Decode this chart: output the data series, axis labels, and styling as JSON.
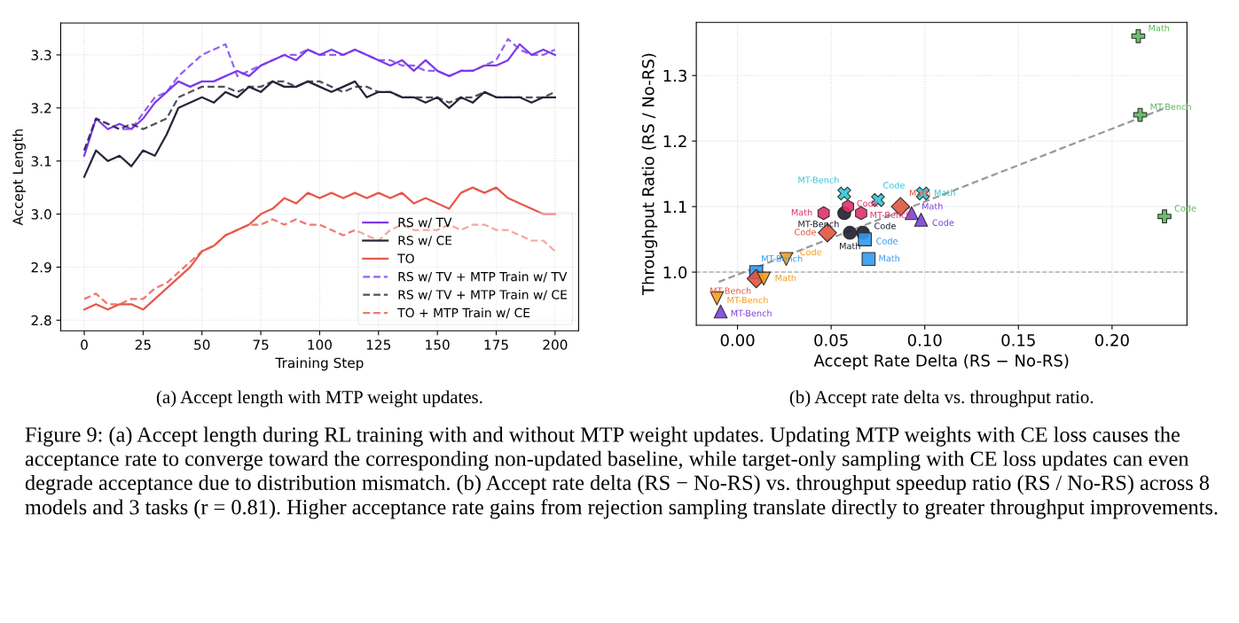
{
  "chart_data": [
    {
      "type": "line",
      "xlabel": "Training Step",
      "ylabel": "Accept Length",
      "grid": true,
      "legend": "bottom right",
      "line_style": "solid",
      "marker": "none",
      "xlim": [
        -10,
        210
      ],
      "ylim": [
        2.78,
        3.36
      ],
      "xticks": [
        0,
        25,
        50,
        75,
        100,
        125,
        150,
        175,
        200
      ],
      "yticks": [
        2.8,
        2.9,
        {
          "value": 3.0,
          "label": "3.0"
        },
        3.1,
        3.2,
        3.3
      ],
      "x": [
        0,
        5,
        10,
        15,
        20,
        25,
        30,
        35,
        40,
        45,
        50,
        55,
        60,
        65,
        70,
        75,
        80,
        85,
        90,
        95,
        100,
        105,
        110,
        115,
        120,
        125,
        130,
        135,
        140,
        145,
        150,
        155,
        160,
        165,
        170,
        175,
        180,
        185,
        190,
        195,
        200
      ],
      "series": [
        {
          "name": "RS w/ TV",
          "color": "#7c3aed",
          "values": [
            3.11,
            3.18,
            3.16,
            3.17,
            3.16,
            3.18,
            3.21,
            3.23,
            3.25,
            3.24,
            3.25,
            3.25,
            3.26,
            3.27,
            3.26,
            3.28,
            3.29,
            3.3,
            3.29,
            3.31,
            3.3,
            3.31,
            3.3,
            3.31,
            3.3,
            3.29,
            3.28,
            3.29,
            3.27,
            3.29,
            3.27,
            3.26,
            3.27,
            3.27,
            3.28,
            3.28,
            3.29,
            3.32,
            3.3,
            3.31,
            3.3
          ]
        },
        {
          "name": "RS w/ CE",
          "color": "#25253a",
          "values": [
            3.07,
            3.12,
            3.1,
            3.11,
            3.09,
            3.12,
            3.11,
            3.15,
            3.2,
            3.21,
            3.22,
            3.21,
            3.23,
            3.22,
            3.24,
            3.23,
            3.25,
            3.24,
            3.24,
            3.25,
            3.24,
            3.23,
            3.24,
            3.25,
            3.22,
            3.23,
            3.23,
            3.22,
            3.22,
            3.21,
            3.22,
            3.2,
            3.22,
            3.21,
            3.23,
            3.22,
            3.22,
            3.22,
            3.21,
            3.22,
            3.22
          ]
        },
        {
          "name": "TO",
          "color": "#e8574a",
          "values": [
            2.82,
            2.83,
            2.82,
            2.83,
            2.83,
            2.82,
            2.84,
            2.86,
            2.88,
            2.9,
            2.93,
            2.94,
            2.96,
            2.97,
            2.98,
            3.0,
            3.01,
            3.03,
            3.02,
            3.04,
            3.03,
            3.04,
            3.03,
            3.04,
            3.03,
            3.04,
            3.03,
            3.04,
            3.02,
            3.03,
            3.02,
            3.01,
            3.04,
            3.05,
            3.04,
            3.05,
            3.03,
            3.02,
            3.01,
            3.0,
            3.0
          ]
        },
        {
          "name": "RS w/ TV + MTP Train w/ TV",
          "color": "#7c3aed",
          "line_style": "dashed",
          "values": [
            3.12,
            3.18,
            3.17,
            3.16,
            3.16,
            3.19,
            3.22,
            3.23,
            3.26,
            3.28,
            3.3,
            3.31,
            3.32,
            3.26,
            3.27,
            3.28,
            3.29,
            3.3,
            3.3,
            3.31,
            3.3,
            3.3,
            3.3,
            3.31,
            3.3,
            3.29,
            3.29,
            3.28,
            3.28,
            3.27,
            3.27,
            3.26,
            3.27,
            3.27,
            3.28,
            3.29,
            3.33,
            3.31,
            3.3,
            3.3,
            3.31
          ]
        },
        {
          "name": "RS w/ TV + MTP Train w/ CE",
          "color": "#25253a",
          "line_style": "dashed",
          "values": [
            3.12,
            3.18,
            3.17,
            3.16,
            3.17,
            3.16,
            3.17,
            3.18,
            3.22,
            3.23,
            3.24,
            3.24,
            3.24,
            3.23,
            3.24,
            3.24,
            3.25,
            3.25,
            3.24,
            3.25,
            3.25,
            3.24,
            3.23,
            3.24,
            3.24,
            3.23,
            3.23,
            3.22,
            3.22,
            3.22,
            3.22,
            3.21,
            3.22,
            3.22,
            3.23,
            3.22,
            3.22,
            3.22,
            3.22,
            3.22,
            3.23
          ]
        },
        {
          "name": "TO + MTP Train w/ CE",
          "color": "#e8574a",
          "line_style": "dashed",
          "values": [
            2.84,
            2.85,
            2.83,
            2.83,
            2.84,
            2.84,
            2.86,
            2.87,
            2.89,
            2.91,
            2.93,
            2.94,
            2.96,
            2.97,
            2.98,
            2.98,
            2.99,
            2.98,
            2.99,
            2.98,
            2.98,
            2.97,
            2.96,
            2.97,
            2.96,
            2.95,
            2.97,
            2.98,
            2.97,
            2.97,
            2.97,
            2.98,
            2.97,
            2.98,
            2.98,
            2.97,
            2.97,
            2.96,
            2.95,
            2.95,
            2.93
          ]
        }
      ],
      "annotations": [
        "(a) Accept length with MTP weight updates.",
        "Figure 9: (a) Accept length during RL training with and without MTP weight updates. Updating MTP weights with CE loss causes the acceptance rate to converge toward the corresponding non-updated baseline, while target-only sampling with CE loss updates can even degrade acceptance due to distribution mismatch. (b) Accept rate delta (RS − No-RS) vs. throughput speedup ratio (RS / No-RS) across 8 models and 3 tasks (r = 0.81). Higher acceptance rate gains from rejection sampling translate directly to greater throughput improvements."
      ]
    },
    {
      "type": "scatter",
      "xlabel": "Accept Rate Delta (RS − No-RS)",
      "ylabel": "Throughput Ratio (RS / No-RS)",
      "grid": true,
      "xlim": [
        -0.022,
        0.24
      ],
      "ylim": [
        0.919,
        1.381
      ],
      "xticks": [
        {
          "value": 0,
          "label": "0.00"
        },
        {
          "value": 0.05,
          "label": "0.05"
        },
        {
          "value": 0.1,
          "label": "0.10"
        },
        {
          "value": 0.15,
          "label": "0.15"
        },
        {
          "value": 0.2,
          "label": "0.20"
        }
      ],
      "yticks": [
        {
          "value": 1.0,
          "label": "1.0"
        },
        {
          "value": 1.1,
          "label": "1.1"
        },
        {
          "value": 1.2,
          "label": "1.2"
        },
        {
          "value": 1.3,
          "label": "1.3"
        }
      ],
      "ref_lines": [
        {
          "axis": "y",
          "value": 1.0,
          "color": "#b0b0b0",
          "line_style": "dashed"
        }
      ],
      "series": [
        {
          "color": "#1e1e30",
          "marker": "circle",
          "x": [
            0.057,
            0.06,
            0.067
          ],
          "values": [
            1.09,
            1.06,
            1.06
          ]
        },
        {
          "color": "#3399ee",
          "marker": "square",
          "x": [
            0.01,
            0.068,
            0.07
          ],
          "values": [
            1.0,
            1.05,
            1.02
          ]
        },
        {
          "color": "#e05540",
          "marker": "diamond",
          "x": [
            0.01,
            0.048,
            0.087
          ],
          "values": [
            0.99,
            1.06,
            1.1
          ]
        },
        {
          "color": "#8040e0",
          "marker": "triangle",
          "x": [
            -0.009,
            0.093,
            0.098
          ],
          "values": [
            0.94,
            1.09,
            1.08
          ]
        },
        {
          "color": "#f5a020",
          "marker": "triangle-down",
          "x": [
            -0.011,
            0.014,
            0.026
          ],
          "values": [
            0.96,
            0.99,
            1.02
          ]
        },
        {
          "color": "#5cb85c",
          "marker": "plus",
          "x": [
            0.214,
            0.215,
            0.228
          ],
          "values": [
            1.36,
            1.24,
            1.085
          ]
        },
        {
          "color": "#e0306a",
          "x": [
            0.046,
            0.059,
            0.066
          ],
          "values": [
            1.09,
            1.1,
            1.09
          ]
        },
        {
          "color": "#30c8d8",
          "marker": "cross",
          "x": [
            0.057,
            0.075,
            0.099
          ],
          "values": [
            1.12,
            1.11,
            1.12
          ]
        },
        {
          "type": "line",
          "color": "#808080",
          "line_style": "dashed",
          "marker": "none",
          "x": [
            -0.01,
            0.228
          ],
          "values": [
            0.985,
            1.25
          ]
        }
      ],
      "annotations": [
        "(b) Accept rate delta vs. throughput ratio.",
        {
          "text": "MT-Bench",
          "x": 0.057,
          "y": 1.09
        },
        {
          "text": "Math",
          "x": 0.06,
          "y": 1.06
        },
        {
          "text": "Code",
          "x": 0.067,
          "y": 1.06
        },
        {
          "text": "MT-Bench",
          "x": 0.01,
          "y": 1.0
        },
        {
          "text": "Code",
          "x": 0.068,
          "y": 1.05
        },
        {
          "text": "Math",
          "x": 0.07,
          "y": 1.02
        },
        {
          "text": "MT-Bench",
          "x": 0.01,
          "y": 0.99
        },
        {
          "text": "Code",
          "x": 0.048,
          "y": 1.06
        },
        {
          "text": "Math",
          "x": 0.087,
          "y": 1.1
        },
        {
          "text": "MT-Bench",
          "x": -0.009,
          "y": 0.94
        },
        {
          "text": "Math",
          "x": 0.093,
          "y": 1.09
        },
        {
          "text": "Code",
          "x": 0.098,
          "y": 1.08
        },
        {
          "text": "MT-Bench",
          "x": -0.011,
          "y": 0.96
        },
        {
          "text": "Math",
          "x": 0.014,
          "y": 0.99
        },
        {
          "text": "Code",
          "x": 0.026,
          "y": 1.02
        },
        {
          "text": "Math",
          "x": 0.214,
          "y": 1.36
        },
        {
          "text": "MT-Bench",
          "x": 0.215,
          "y": 1.24
        },
        {
          "text": "Code",
          "x": 0.228,
          "y": 1.085
        },
        {
          "text": "Math",
          "x": 0.046,
          "y": 1.09
        },
        {
          "text": "Code",
          "x": 0.059,
          "y": 1.1
        },
        {
          "text": "MT-Bench",
          "x": 0.066,
          "y": 1.09
        },
        {
          "text": "MT-Bench",
          "x": 0.057,
          "y": 1.12
        },
        {
          "text": "Code",
          "x": 0.075,
          "y": 1.11
        },
        {
          "text": "Math",
          "x": 0.099,
          "y": 1.12
        }
      ]
    }
  ]
}
